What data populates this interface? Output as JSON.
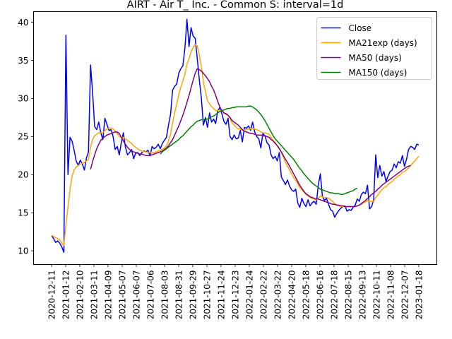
{
  "chart_data": {
    "type": "line",
    "title": "AIRT - Air T_ Inc. - Common S: interval=1d",
    "xlabel": "",
    "ylabel": "",
    "x_ticks": [
      "2020-12-11",
      "2021-01-12",
      "2021-02-10",
      "2021-03-11",
      "2021-04-09",
      "2021-05-07",
      "2021-06-07",
      "2021-07-06",
      "2021-08-03",
      "2021-08-31",
      "2021-09-29",
      "2021-10-27",
      "2021-11-24",
      "2021-12-23",
      "2022-01-24",
      "2022-02-22",
      "2022-03-22",
      "2022-04-20",
      "2022-05-18",
      "2022-06-16",
      "2022-07-18",
      "2022-08-15",
      "2022-09-13",
      "2022-10-11",
      "2022-11-08",
      "2022-12-07",
      "2023-01-18"
    ],
    "y_ticks": [
      10,
      15,
      20,
      25,
      30,
      35,
      40
    ],
    "ylim": [
      8.2,
      41.4
    ],
    "legend": {
      "position": "top-right"
    },
    "grid": false,
    "series": [
      {
        "name": "Close",
        "color": "#0000ff",
        "values": [
          12.0,
          11.6,
          11.1,
          11.3,
          11.0,
          10.5,
          9.8,
          38.3,
          20.0,
          24.9,
          24.4,
          23.2,
          21.8,
          21.2,
          21.9,
          21.4,
          20.6,
          22.2,
          23.0,
          34.4,
          30.8,
          26.3,
          25.9,
          26.9,
          25.5,
          24.6,
          27.4,
          26.6,
          25.8,
          25.9,
          25.0,
          23.3,
          23.7,
          22.6,
          24.2,
          25.5,
          23.6,
          22.6,
          22.9,
          23.3,
          22.1,
          22.8,
          22.9,
          22.5,
          22.9,
          23.1,
          23.0,
          23.2,
          22.5,
          23.7,
          23.4,
          23.6,
          24.0,
          23.4,
          24.1,
          24.5,
          24.9,
          26.5,
          27.9,
          31.1,
          31.6,
          31.9,
          33.3,
          33.9,
          34.3,
          36.6,
          40.4,
          36.8,
          39.3,
          38.2,
          37.9,
          35.3,
          32.5,
          30.1,
          26.5,
          27.5,
          26.2,
          28.1,
          26.9,
          27.3,
          26.7,
          28.4,
          28.8,
          28.0,
          27.0,
          26.6,
          27.4,
          25.0,
          24.6,
          25.2,
          24.7,
          24.8,
          25.8,
          24.3,
          26.2,
          26.1,
          26.4,
          25.8,
          26.9,
          25.6,
          25.0,
          24.7,
          23.5,
          25.4,
          25.1,
          24.2,
          23.9,
          22.6,
          22.1,
          22.4,
          21.8,
          22.9,
          19.7,
          19.2,
          18.7,
          19.3,
          18.5,
          18.0,
          17.8,
          18.1,
          16.3,
          15.7,
          16.9,
          16.2,
          15.8,
          16.7,
          15.9,
          16.3,
          16.5,
          16.1,
          18.6,
          20.1,
          17.2,
          16.6,
          16.9,
          16.1,
          15.4,
          15.2,
          14.4,
          14.9,
          15.3,
          15.6,
          15.8,
          15.9,
          15.2,
          15.4,
          15.3,
          15.7,
          16.0,
          16.8,
          16.5,
          17.4,
          17.7,
          17.5,
          18.6,
          15.5,
          15.8,
          16.7,
          22.6,
          19.6,
          21.2,
          19.8,
          20.4,
          19.1,
          19.8,
          20.4,
          20.6,
          21.4,
          20.9,
          21.7,
          21.5,
          22.5,
          21.1,
          22.0,
          23.3,
          23.7,
          23.6,
          23.3,
          24.0,
          23.9
        ]
      },
      {
        "name": "MA21exp (days)",
        "color": "#ffa500",
        "values": [
          12.0,
          11.9,
          11.7,
          11.6,
          11.4,
          11.0,
          10.7,
          13.4,
          15.7,
          18.1,
          19.8,
          20.6,
          21.0,
          21.2,
          21.4,
          21.5,
          21.6,
          21.8,
          22.0,
          23.6,
          24.6,
          25.1,
          25.3,
          25.5,
          25.5,
          25.5,
          25.8,
          26.0,
          26.1,
          26.1,
          26.0,
          25.7,
          25.4,
          25.0,
          24.9,
          24.9,
          24.7,
          24.5,
          24.3,
          24.1,
          23.8,
          23.6,
          23.4,
          23.2,
          23.1,
          23.0,
          23.0,
          22.9,
          22.9,
          22.9,
          22.9,
          23.0,
          23.1,
          23.2,
          23.3,
          23.5,
          23.8,
          24.4,
          25.3,
          26.8,
          28.1,
          29.3,
          30.5,
          31.5,
          32.3,
          33.2,
          34.5,
          35.2,
          36.1,
          36.7,
          37.1,
          36.9,
          35.7,
          34.2,
          32.2,
          30.9,
          29.7,
          29.3,
          28.9,
          28.7,
          28.4,
          28.4,
          28.5,
          28.4,
          28.2,
          27.9,
          27.8,
          27.3,
          26.8,
          26.5,
          26.2,
          26.0,
          26.0,
          25.8,
          25.9,
          25.9,
          26.0,
          26.0,
          26.1,
          26.0,
          25.9,
          25.8,
          25.6,
          25.5,
          25.5,
          25.4,
          25.3,
          24.9,
          24.5,
          24.2,
          23.8,
          23.5,
          22.9,
          22.3,
          21.6,
          21.1,
          20.6,
          20.1,
          19.6,
          19.3,
          18.8,
          18.3,
          18.0,
          17.7,
          17.4,
          17.2,
          17.0,
          16.9,
          16.8,
          16.7,
          16.9,
          17.2,
          17.1,
          17.0,
          17.0,
          16.9,
          16.7,
          16.5,
          16.2,
          16.0,
          15.9,
          15.8,
          15.8,
          15.8,
          15.8,
          15.8,
          15.8,
          15.8,
          15.8,
          15.9,
          16.0,
          16.1,
          16.3,
          16.4,
          16.6,
          16.5,
          16.5,
          16.5,
          17.0,
          17.3,
          17.7,
          18.0,
          18.3,
          18.4,
          18.7,
          18.9,
          19.1,
          19.4,
          19.6,
          19.8,
          20.0,
          20.3,
          20.4,
          20.6,
          20.9,
          21.2,
          21.5,
          21.8,
          22.1,
          22.4
        ]
      },
      {
        "name": "MA50 (days)",
        "color": "#800080",
        "values": [
          null,
          null,
          null,
          null,
          null,
          null,
          null,
          null,
          null,
          null,
          null,
          null,
          null,
          null,
          null,
          null,
          null,
          null,
          null,
          20.7,
          21.7,
          22.6,
          23.4,
          24.0,
          24.5,
          24.8,
          25.0,
          25.2,
          25.3,
          25.4,
          25.5,
          25.6,
          25.6,
          25.4,
          24.9,
          24.4,
          24.0,
          23.6,
          23.3,
          23.1,
          23.0,
          22.9,
          22.8,
          22.7,
          22.7,
          22.6,
          22.5,
          22.5,
          22.5,
          22.6,
          22.7,
          22.8,
          22.9,
          23.0,
          23.1,
          23.3,
          23.5,
          23.8,
          24.2,
          24.6,
          25.2,
          25.8,
          26.4,
          27.1,
          27.8,
          28.6,
          29.5,
          30.4,
          31.4,
          32.4,
          33.3,
          33.9,
          33.8,
          33.6,
          33.3,
          33.0,
          32.6,
          32.2,
          31.6,
          31.1,
          30.4,
          29.6,
          28.9,
          28.4,
          28.1,
          28.0,
          27.8,
          27.5,
          27.1,
          26.9,
          26.7,
          26.5,
          26.2,
          25.9,
          25.7,
          25.6,
          25.5,
          25.4,
          25.4,
          25.3,
          25.2,
          25.2,
          25.2,
          25.1,
          25.1,
          25.0,
          24.9,
          24.6,
          24.4,
          24.1,
          23.8,
          23.4,
          23.0,
          22.5,
          22.0,
          21.6,
          21.1,
          20.6,
          20.1,
          19.6,
          19.1,
          18.6,
          18.2,
          17.8,
          17.5,
          17.3,
          17.1,
          17.0,
          16.9,
          16.8,
          16.8,
          16.7,
          16.6,
          16.5,
          16.4,
          16.3,
          16.2,
          16.1,
          16.1,
          16.0,
          16.0,
          15.9,
          15.9,
          15.8,
          15.8,
          15.8,
          15.8,
          15.8,
          15.8,
          15.9,
          16.0,
          16.2,
          16.4,
          16.6,
          16.9,
          17.1,
          17.4,
          17.6,
          17.8,
          18.1,
          18.3,
          18.6,
          18.8,
          19.0,
          19.2,
          19.4,
          19.6,
          19.8,
          20.0,
          20.2,
          20.4,
          20.6,
          20.8,
          21.0,
          21.1,
          21.2
        ]
      },
      {
        "name": "MA150 (days)",
        "color": "#008000",
        "values": [
          null,
          null,
          null,
          null,
          null,
          null,
          null,
          null,
          null,
          null,
          null,
          null,
          null,
          null,
          null,
          null,
          null,
          null,
          null,
          null,
          null,
          null,
          null,
          null,
          null,
          null,
          null,
          null,
          null,
          null,
          null,
          null,
          null,
          null,
          null,
          null,
          null,
          null,
          null,
          null,
          null,
          null,
          null,
          null,
          null,
          null,
          null,
          null,
          null,
          null,
          null,
          null,
          null,
          22.7,
          23.0,
          23.2,
          23.4,
          23.6,
          23.8,
          24.0,
          24.2,
          24.4,
          24.6,
          24.9,
          25.1,
          25.4,
          25.7,
          26.0,
          26.3,
          26.5,
          26.8,
          27.0,
          27.1,
          27.2,
          27.2,
          27.3,
          27.3,
          27.4,
          27.6,
          27.7,
          27.9,
          28.1,
          28.3,
          28.4,
          28.5,
          28.6,
          28.7,
          28.7,
          28.8,
          28.8,
          28.9,
          28.9,
          28.9,
          28.9,
          28.9,
          28.9,
          29.0,
          29.0,
          28.9,
          28.7,
          28.5,
          28.2,
          27.9,
          27.5,
          27.1,
          26.6,
          26.1,
          25.6,
          25.1,
          24.7,
          24.4,
          24.1,
          23.8,
          23.5,
          23.2,
          22.9,
          22.6,
          22.3,
          22.0,
          21.6,
          21.2,
          20.8,
          20.5,
          20.1,
          19.8,
          19.5,
          19.2,
          18.9,
          18.7,
          18.5,
          18.3,
          18.1,
          18.0,
          17.9,
          17.8,
          17.7,
          17.6,
          17.6,
          17.5,
          17.5,
          17.5,
          17.4,
          17.4,
          17.5,
          17.6,
          17.7,
          17.8,
          17.9,
          18.1,
          18.2
        ]
      }
    ]
  }
}
